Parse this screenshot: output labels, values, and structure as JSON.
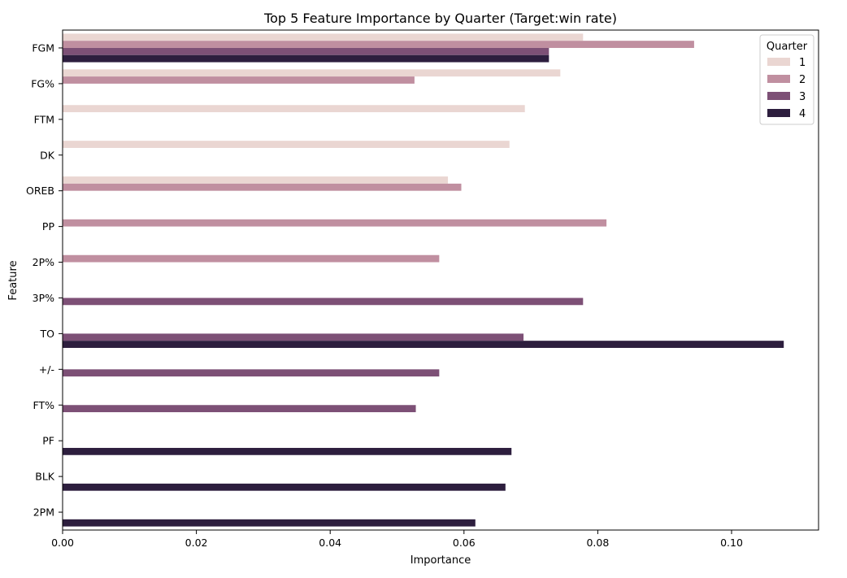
{
  "chart_data": {
    "type": "bar",
    "orientation": "horizontal",
    "title": "Top 5 Feature Importance by Quarter (Target:win rate)",
    "xlabel": "Importance",
    "ylabel": "Feature",
    "xlim": [
      0,
      0.113
    ],
    "xticks": [
      "0.00",
      "0.02",
      "0.04",
      "0.06",
      "0.08",
      "0.10"
    ],
    "xtick_values": [
      0,
      0.02,
      0.04,
      0.06,
      0.08,
      0.1
    ],
    "categories": [
      "FGM",
      "FG%",
      "FTM",
      "DK",
      "OREB",
      "PP",
      "2P%",
      "3P%",
      "TO",
      "+/-",
      "FT%",
      "PF",
      "BLK",
      "2PM"
    ],
    "series": [
      {
        "name": "1",
        "color": "#ead6d2",
        "values": [
          0.0778,
          0.0744,
          0.0691,
          0.0668,
          0.0576,
          null,
          null,
          null,
          null,
          null,
          null,
          null,
          null,
          null
        ]
      },
      {
        "name": "2",
        "color": "#c08fa0",
        "values": [
          0.0944,
          0.0526,
          null,
          null,
          0.0596,
          0.0813,
          0.0563,
          null,
          null,
          null,
          null,
          null,
          null,
          null
        ]
      },
      {
        "name": "3",
        "color": "#7d5076",
        "values": [
          0.0727,
          null,
          null,
          null,
          null,
          null,
          null,
          0.0778,
          0.0689,
          0.0563,
          0.0528,
          null,
          null,
          null
        ]
      },
      {
        "name": "4",
        "color": "#2d1e3e",
        "values": [
          0.0727,
          null,
          null,
          null,
          null,
          null,
          null,
          null,
          0.1078,
          null,
          null,
          0.0671,
          0.0662,
          0.0617
        ]
      }
    ],
    "legend": {
      "title": "Quarter",
      "position": "top-right"
    },
    "grid": false
  }
}
